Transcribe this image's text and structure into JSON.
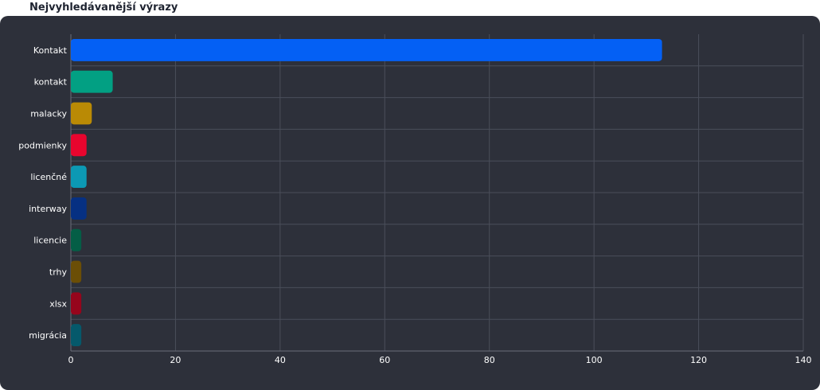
{
  "title": "Nejvyhledávanější výrazy",
  "chart_data": {
    "type": "bar",
    "orientation": "horizontal",
    "title": "Nejvyhledávanější výrazy",
    "xlabel": "",
    "ylabel": "",
    "xlim": [
      0,
      140
    ],
    "x_ticks": [
      0,
      20,
      40,
      60,
      80,
      100,
      120,
      140
    ],
    "grid": true,
    "categories": [
      "Kontakt",
      "kontakt",
      "malacky",
      "podmienky",
      "licenčné",
      "interway",
      "licencie",
      "trhy",
      "xlsx",
      "migrácia"
    ],
    "values": [
      113,
      8,
      4,
      3,
      3,
      3,
      2,
      2,
      2,
      2
    ],
    "colors": [
      "#0460f5",
      "#02a083",
      "#ba8a05",
      "#e8052e",
      "#0c99b4",
      "#063082",
      "#045e46",
      "#6b4e06",
      "#96051c",
      "#05596b"
    ]
  }
}
